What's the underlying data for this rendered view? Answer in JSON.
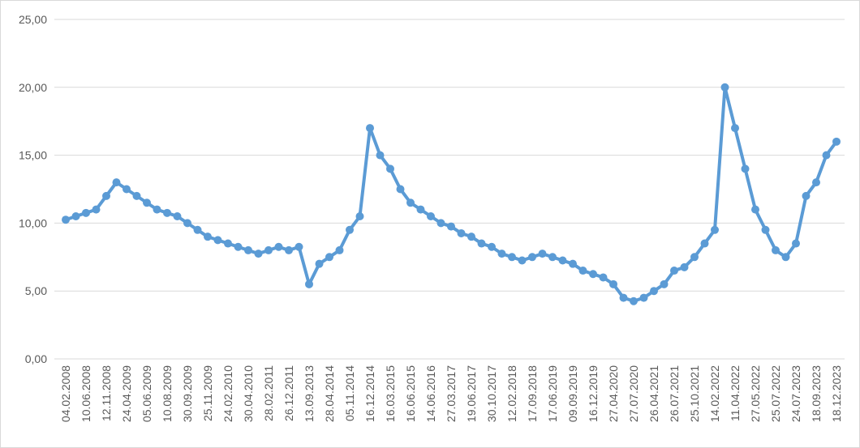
{
  "chart_data": {
    "type": "line",
    "title": "",
    "xlabel": "",
    "ylabel": "",
    "ylim": [
      0,
      25
    ],
    "yticks": [
      "0,00",
      "5,00",
      "10,00",
      "15,00",
      "20,00",
      "25,00"
    ],
    "grid": true,
    "legend": "none",
    "colors": {
      "series": "#5b9bd5",
      "grid": "#d9d9d9",
      "text": "#595959"
    },
    "x_tick_labels": [
      "04.02.2008",
      "10.06.2008",
      "12.11.2008",
      "24.04.2009",
      "05.06.2009",
      "10.08.2009",
      "30.09.2009",
      "25.11.2009",
      "24.02.2010",
      "30.04.2010",
      "28.02.2011",
      "26.12.2011",
      "13.09.2013",
      "28.04.2014",
      "05.11.2014",
      "16.12.2014",
      "16.03.2015",
      "16.06.2015",
      "14.06.2016",
      "27.03.2017",
      "19.06.2017",
      "30.10.2017",
      "12.02.2018",
      "17.09.2018",
      "17.06.2019",
      "09.09.2019",
      "16.12.2019",
      "27.04.2020",
      "27.07.2020",
      "26.04.2021",
      "26.07.2021",
      "25.10.2021",
      "14.02.2022",
      "11.04.2022",
      "27.05.2022",
      "25.07.2022",
      "24.07.2023",
      "18.09.2023",
      "18.12.2023"
    ],
    "series": [
      {
        "values": [
          10.25,
          10.5,
          10.75,
          11,
          12,
          13,
          12.5,
          12,
          11.5,
          11,
          10.75,
          10.5,
          10,
          9.5,
          9,
          8.75,
          8.5,
          8.25,
          8,
          7.75,
          8,
          8.25,
          8,
          8.25,
          5.5,
          7,
          7.5,
          8,
          9.5,
          10.5,
          17,
          15,
          14,
          12.5,
          11.5,
          11,
          10.5,
          10,
          9.75,
          9.25,
          9,
          8.5,
          8.25,
          7.75,
          7.5,
          7.25,
          7.5,
          7.75,
          7.5,
          7.25,
          7,
          6.5,
          6.25,
          6,
          5.5,
          4.5,
          4.25,
          4.5,
          5,
          5.5,
          6.5,
          6.75,
          7.5,
          8.5,
          9.5,
          20,
          17,
          14,
          11,
          9.5,
          8,
          7.5,
          8.5,
          12,
          13,
          15,
          16
        ]
      }
    ]
  }
}
